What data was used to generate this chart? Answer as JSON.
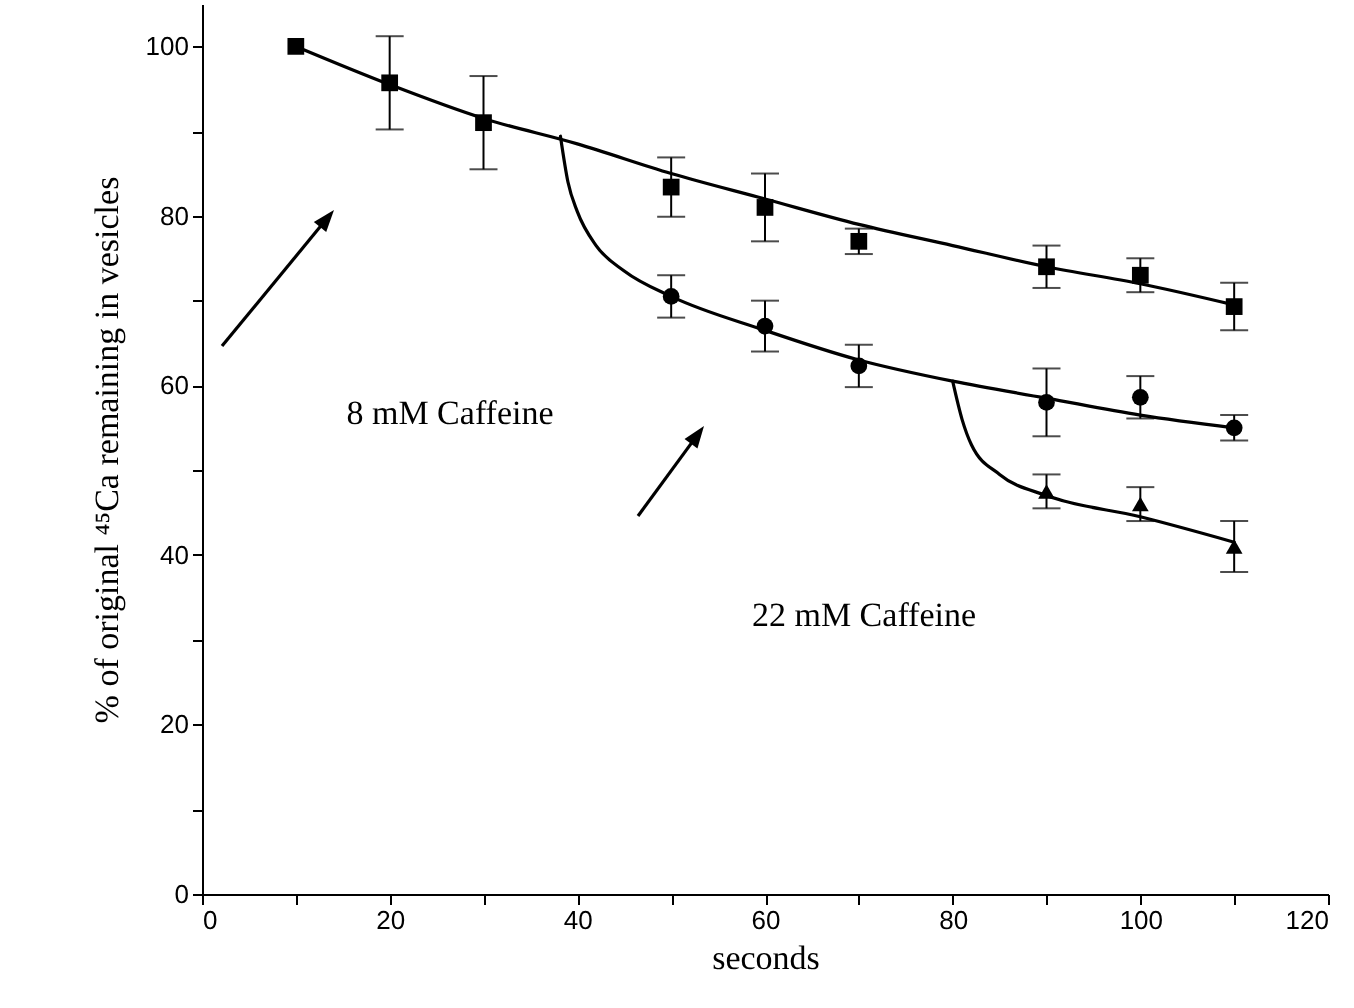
{
  "chart_data": {
    "type": "scatter",
    "xlabel": "seconds",
    "ylabel": "% of original ⁴⁵Ca remaining in vesicles",
    "xlim": [
      0,
      120
    ],
    "xticks": [
      0,
      {
        "value": 10,
        "label": null
      },
      20,
      {
        "value": 30,
        "label": null
      },
      40,
      {
        "value": 50,
        "label": null
      },
      60,
      {
        "value": 70,
        "label": null
      },
      80,
      {
        "value": 90,
        "label": null
      },
      100,
      {
        "value": 110,
        "label": null
      },
      120
    ],
    "ylim": [
      0,
      105
    ],
    "yticks": [
      0,
      {
        "value": 10,
        "label": null
      },
      20,
      {
        "value": 30,
        "label": null
      },
      40,
      {
        "value": 50,
        "label": null
      },
      60,
      {
        "value": 70,
        "label": null
      },
      80,
      {
        "value": 90,
        "label": null
      },
      100
    ],
    "grid": false,
    "series": [
      {
        "marker": "square",
        "color": "#000000",
        "x": [
          10,
          20,
          30,
          50,
          60,
          70,
          90,
          100,
          110
        ],
        "values": [
          100,
          95.7,
          91,
          83.4,
          81,
          77,
          74,
          73,
          69.3
        ],
        "errors": [
          null,
          5.5,
          5.5,
          3.5,
          4,
          1.5,
          2.5,
          2,
          2.8
        ]
      },
      {
        "marker": "circle",
        "color": "#000000",
        "x": [
          50,
          60,
          70,
          90,
          100,
          110
        ],
        "values": [
          70.5,
          67,
          62.3,
          58,
          58.6,
          55
        ],
        "errors": [
          2.5,
          3,
          2.5,
          4,
          2.5,
          1.5
        ]
      },
      {
        "marker": "triangle",
        "color": "#000000",
        "x": [
          90,
          100,
          110
        ],
        "values": [
          47.5,
          46,
          41
        ],
        "errors": [
          2,
          2,
          3
        ]
      },
      {
        "type": "line",
        "marker": "none",
        "color": "#000000",
        "x": [
          10,
          20,
          30,
          40,
          50,
          60,
          70,
          80,
          90,
          100,
          110
        ],
        "values": [
          100,
          95.5,
          91.5,
          88.5,
          85,
          82,
          79,
          76.5,
          74,
          72,
          69.5
        ]
      },
      {
        "type": "line",
        "marker": "none",
        "color": "#000000",
        "x": [
          38.2,
          39,
          40,
          42,
          45,
          50,
          60,
          70,
          80,
          90,
          100,
          110
        ],
        "values": [
          89.4,
          84,
          80.5,
          76.5,
          73.5,
          70.5,
          66.5,
          63,
          60.5,
          58.5,
          56.5,
          55
        ]
      },
      {
        "type": "line",
        "marker": "none",
        "color": "#000000",
        "x": [
          80,
          81,
          82,
          85,
          90,
          100,
          110
        ],
        "values": [
          60.5,
          56,
          53,
          49.5,
          47,
          44.5,
          41.5
        ]
      }
    ],
    "annotations": [
      "8 mM Caffeine",
      "22 mM Caffeine"
    ]
  }
}
